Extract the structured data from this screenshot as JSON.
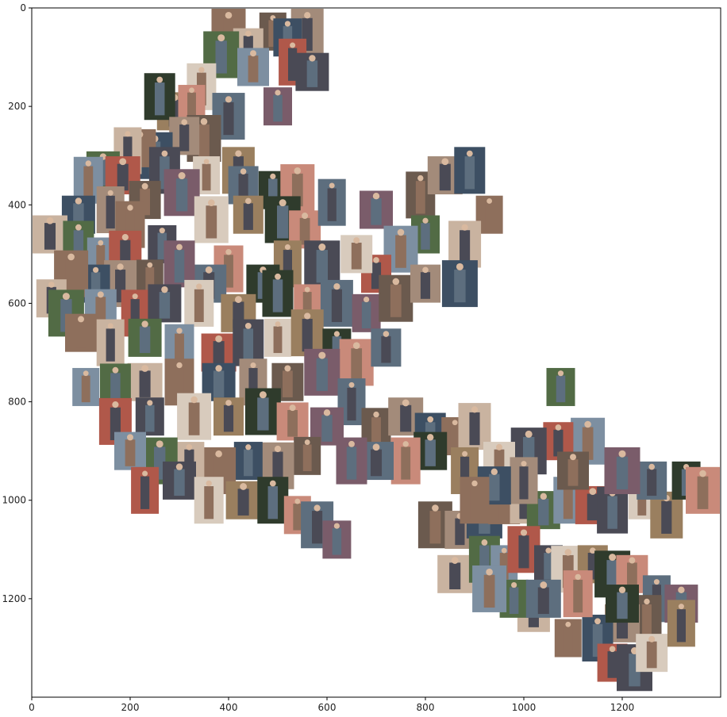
{
  "chart_data": {
    "type": "scatter",
    "marker": "thumbnail",
    "title": "",
    "xlabel": "",
    "ylabel": "",
    "xlim": [
      0,
      1400
    ],
    "ylim": [
      1400,
      0
    ],
    "y_inverted": true,
    "grid": false,
    "legend": "none",
    "xticks": [
      "0",
      "200",
      "400",
      "600",
      "800",
      "1000",
      "1200"
    ],
    "yticks": [
      "0",
      "200",
      "400",
      "600",
      "800",
      "1000",
      "1200"
    ],
    "points": [
      {
        "x": 490,
        "y": 48
      },
      {
        "x": 560,
        "y": 40
      },
      {
        "x": 520,
        "y": 60
      },
      {
        "x": 400,
        "y": 40
      },
      {
        "x": 440,
        "y": 80
      },
      {
        "x": 385,
        "y": 95
      },
      {
        "x": 450,
        "y": 120
      },
      {
        "x": 530,
        "y": 110
      },
      {
        "x": 570,
        "y": 130
      },
      {
        "x": 345,
        "y": 160
      },
      {
        "x": 290,
        "y": 210
      },
      {
        "x": 260,
        "y": 180
      },
      {
        "x": 325,
        "y": 195
      },
      {
        "x": 400,
        "y": 220
      },
      {
        "x": 500,
        "y": 200
      },
      {
        "x": 350,
        "y": 265
      },
      {
        "x": 310,
        "y": 260
      },
      {
        "x": 250,
        "y": 300
      },
      {
        "x": 220,
        "y": 285
      },
      {
        "x": 195,
        "y": 290
      },
      {
        "x": 145,
        "y": 330
      },
      {
        "x": 115,
        "y": 350
      },
      {
        "x": 185,
        "y": 340
      },
      {
        "x": 270,
        "y": 330
      },
      {
        "x": 355,
        "y": 340
      },
      {
        "x": 420,
        "y": 330
      },
      {
        "x": 490,
        "y": 370
      },
      {
        "x": 540,
        "y": 365
      },
      {
        "x": 430,
        "y": 360
      },
      {
        "x": 305,
        "y": 375
      },
      {
        "x": 230,
        "y": 390
      },
      {
        "x": 160,
        "y": 410
      },
      {
        "x": 95,
        "y": 420
      },
      {
        "x": 200,
        "y": 440
      },
      {
        "x": 35,
        "y": 460
      },
      {
        "x": 95,
        "y": 480
      },
      {
        "x": 140,
        "y": 505
      },
      {
        "x": 190,
        "y": 500
      },
      {
        "x": 265,
        "y": 480
      },
      {
        "x": 365,
        "y": 430
      },
      {
        "x": 440,
        "y": 420
      },
      {
        "x": 510,
        "y": 430
      },
      {
        "x": 555,
        "y": 450
      },
      {
        "x": 610,
        "y": 395
      },
      {
        "x": 700,
        "y": 410
      },
      {
        "x": 790,
        "y": 380
      },
      {
        "x": 840,
        "y": 340
      },
      {
        "x": 890,
        "y": 330
      },
      {
        "x": 930,
        "y": 420
      },
      {
        "x": 880,
        "y": 480
      },
      {
        "x": 800,
        "y": 460
      },
      {
        "x": 750,
        "y": 490
      },
      {
        "x": 700,
        "y": 540
      },
      {
        "x": 590,
        "y": 520
      },
      {
        "x": 660,
        "y": 500
      },
      {
        "x": 520,
        "y": 520
      },
      {
        "x": 470,
        "y": 560
      },
      {
        "x": 400,
        "y": 530
      },
      {
        "x": 360,
        "y": 560
      },
      {
        "x": 300,
        "y": 520
      },
      {
        "x": 240,
        "y": 550
      },
      {
        "x": 180,
        "y": 560
      },
      {
        "x": 130,
        "y": 560
      },
      {
        "x": 80,
        "y": 540
      },
      {
        "x": 40,
        "y": 590
      },
      {
        "x": 70,
        "y": 620
      },
      {
        "x": 140,
        "y": 610
      },
      {
        "x": 210,
        "y": 620
      },
      {
        "x": 270,
        "y": 600
      },
      {
        "x": 340,
        "y": 600
      },
      {
        "x": 420,
        "y": 620
      },
      {
        "x": 500,
        "y": 580
      },
      {
        "x": 560,
        "y": 600
      },
      {
        "x": 620,
        "y": 600
      },
      {
        "x": 680,
        "y": 620
      },
      {
        "x": 740,
        "y": 590
      },
      {
        "x": 800,
        "y": 560
      },
      {
        "x": 870,
        "y": 560
      },
      {
        "x": 100,
        "y": 660
      },
      {
        "x": 160,
        "y": 680
      },
      {
        "x": 230,
        "y": 670
      },
      {
        "x": 300,
        "y": 690
      },
      {
        "x": 380,
        "y": 700
      },
      {
        "x": 440,
        "y": 680
      },
      {
        "x": 500,
        "y": 670
      },
      {
        "x": 560,
        "y": 660
      },
      {
        "x": 620,
        "y": 690
      },
      {
        "x": 660,
        "y": 720
      },
      {
        "x": 720,
        "y": 690
      },
      {
        "x": 590,
        "y": 740
      },
      {
        "x": 520,
        "y": 760
      },
      {
        "x": 450,
        "y": 760
      },
      {
        "x": 380,
        "y": 760
      },
      {
        "x": 300,
        "y": 760
      },
      {
        "x": 230,
        "y": 760
      },
      {
        "x": 170,
        "y": 770
      },
      {
        "x": 110,
        "y": 770
      },
      {
        "x": 170,
        "y": 840
      },
      {
        "x": 240,
        "y": 830
      },
      {
        "x": 330,
        "y": 830
      },
      {
        "x": 400,
        "y": 830
      },
      {
        "x": 470,
        "y": 820
      },
      {
        "x": 530,
        "y": 840
      },
      {
        "x": 650,
        "y": 800
      },
      {
        "x": 600,
        "y": 850
      },
      {
        "x": 700,
        "y": 860
      },
      {
        "x": 760,
        "y": 830
      },
      {
        "x": 810,
        "y": 870
      },
      {
        "x": 860,
        "y": 870
      },
      {
        "x": 900,
        "y": 850
      },
      {
        "x": 1075,
        "y": 770
      },
      {
        "x": 1130,
        "y": 880
      },
      {
        "x": 1070,
        "y": 880
      },
      {
        "x": 1010,
        "y": 900
      },
      {
        "x": 950,
        "y": 920
      },
      {
        "x": 880,
        "y": 940
      },
      {
        "x": 810,
        "y": 900
      },
      {
        "x": 760,
        "y": 920
      },
      {
        "x": 700,
        "y": 920
      },
      {
        "x": 650,
        "y": 920
      },
      {
        "x": 560,
        "y": 910
      },
      {
        "x": 500,
        "y": 930
      },
      {
        "x": 440,
        "y": 920
      },
      {
        "x": 380,
        "y": 940
      },
      {
        "x": 320,
        "y": 920
      },
      {
        "x": 260,
        "y": 920
      },
      {
        "x": 200,
        "y": 900
      },
      {
        "x": 230,
        "y": 980
      },
      {
        "x": 300,
        "y": 960
      },
      {
        "x": 360,
        "y": 1000
      },
      {
        "x": 430,
        "y": 1000
      },
      {
        "x": 490,
        "y": 1000
      },
      {
        "x": 540,
        "y": 1030
      },
      {
        "x": 580,
        "y": 1050
      },
      {
        "x": 620,
        "y": 1080
      },
      {
        "x": 820,
        "y": 1050
      },
      {
        "x": 870,
        "y": 1060
      },
      {
        "x": 920,
        "y": 1030
      },
      {
        "x": 960,
        "y": 1010
      },
      {
        "x": 1000,
        "y": 1000
      },
      {
        "x": 1040,
        "y": 1020
      },
      {
        "x": 1090,
        "y": 1000
      },
      {
        "x": 1140,
        "y": 1010
      },
      {
        "x": 1180,
        "y": 1020
      },
      {
        "x": 1240,
        "y": 1000
      },
      {
        "x": 1290,
        "y": 1030
      },
      {
        "x": 1330,
        "y": 960
      },
      {
        "x": 1370,
        "y": 980
      },
      {
        "x": 1260,
        "y": 960
      },
      {
        "x": 1200,
        "y": 940
      },
      {
        "x": 1100,
        "y": 940
      },
      {
        "x": 1000,
        "y": 960
      },
      {
        "x": 940,
        "y": 970
      },
      {
        "x": 900,
        "y": 1000
      },
      {
        "x": 860,
        "y": 1150
      },
      {
        "x": 920,
        "y": 1120
      },
      {
        "x": 960,
        "y": 1130
      },
      {
        "x": 1000,
        "y": 1100
      },
      {
        "x": 1050,
        "y": 1130
      },
      {
        "x": 1090,
        "y": 1140
      },
      {
        "x": 1140,
        "y": 1130
      },
      {
        "x": 1180,
        "y": 1150
      },
      {
        "x": 1220,
        "y": 1150
      },
      {
        "x": 1270,
        "y": 1200
      },
      {
        "x": 1320,
        "y": 1210
      },
      {
        "x": 1250,
        "y": 1240
      },
      {
        "x": 1200,
        "y": 1250
      },
      {
        "x": 1150,
        "y": 1280
      },
      {
        "x": 1090,
        "y": 1280
      },
      {
        "x": 1020,
        "y": 1220
      },
      {
        "x": 980,
        "y": 1200
      },
      {
        "x": 930,
        "y": 1180
      },
      {
        "x": 1180,
        "y": 1330
      },
      {
        "x": 1225,
        "y": 1340
      },
      {
        "x": 1260,
        "y": 1310
      },
      {
        "x": 1320,
        "y": 1250
      },
      {
        "x": 1200,
        "y": 1210
      },
      {
        "x": 1110,
        "y": 1190
      },
      {
        "x": 1040,
        "y": 1200
      }
    ]
  }
}
